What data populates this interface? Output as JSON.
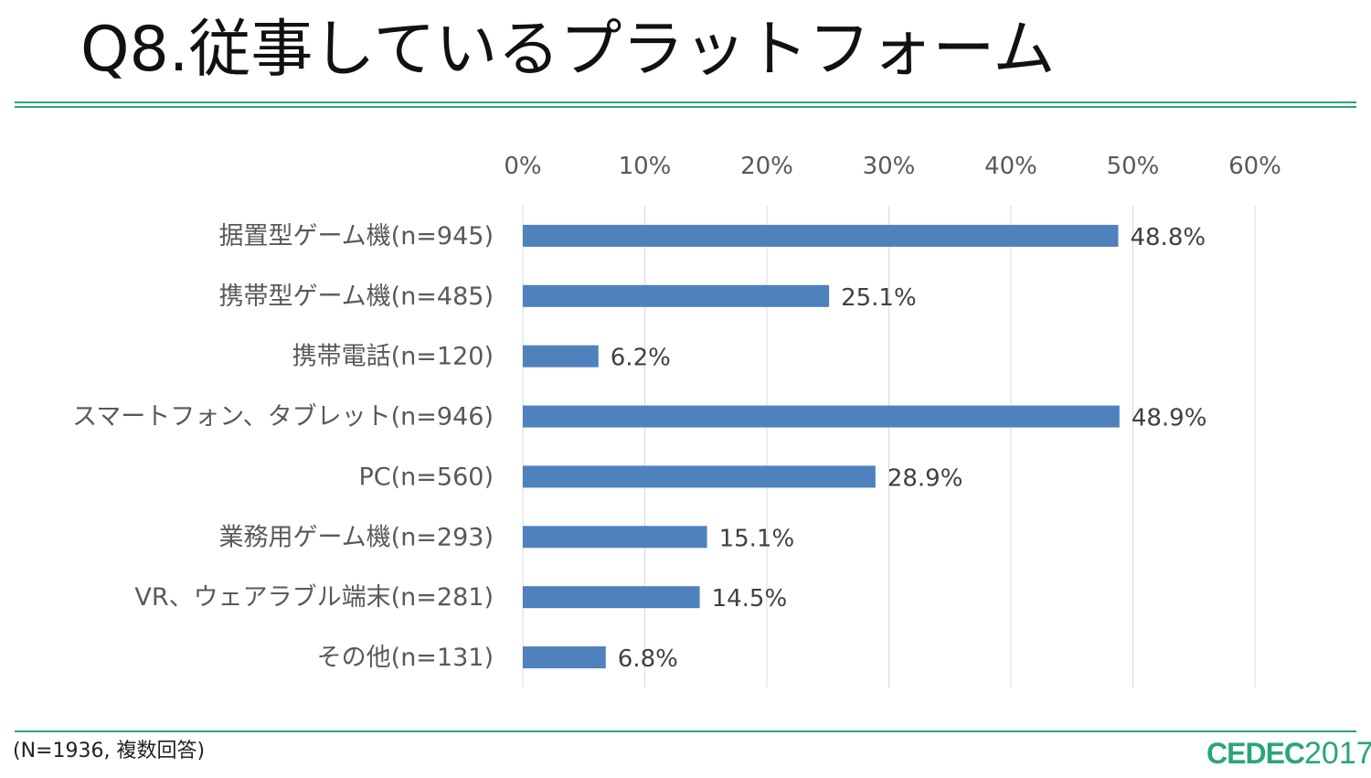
{
  "slide": {
    "title": "Q8.従事しているプラットフォーム",
    "footnote": "(N=1936, 複数回答)",
    "logo_brand": "CEDEC",
    "logo_year": "2017",
    "accent_color": "#2aa57a"
  },
  "chart_data": {
    "type": "bar",
    "orientation": "horizontal",
    "categories": [
      "据置型ゲーム機(n=945)",
      "携帯型ゲーム機(n=485)",
      "携帯電話(n=120)",
      "スマートフォン、タブレット(n=946)",
      "PC(n=560)",
      "業務用ゲーム機(n=293)",
      "VR、ウェアラブル端末(n=281)",
      "その他(n=131)"
    ],
    "values": [
      48.8,
      25.1,
      6.2,
      48.9,
      28.9,
      15.1,
      14.5,
      6.8
    ],
    "data_labels": [
      "48.8%",
      "25.1%",
      "6.2%",
      "48.9%",
      "28.9%",
      "15.1%",
      "14.5%",
      "6.8%"
    ],
    "xlim": [
      0,
      60
    ],
    "x_ticks": [
      0,
      10,
      20,
      30,
      40,
      50,
      60
    ],
    "x_tick_labels": [
      "0%",
      "10%",
      "20%",
      "30%",
      "40%",
      "50%",
      "60%"
    ],
    "x_axis_position": "top",
    "grid": true,
    "legend": "none",
    "bar_color": "#4f81bd",
    "title": "",
    "xlabel": "",
    "ylabel": ""
  }
}
